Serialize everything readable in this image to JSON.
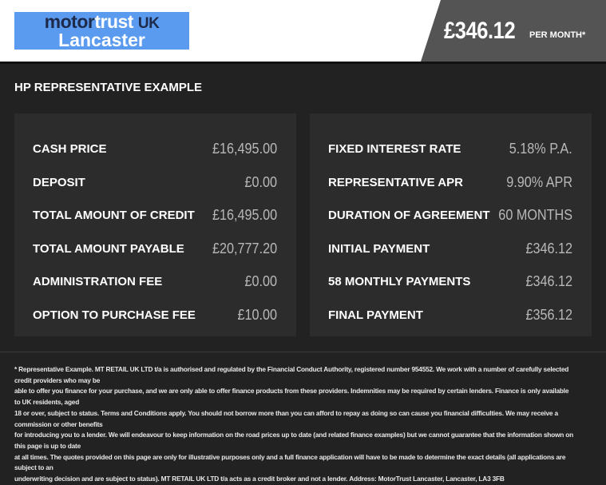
{
  "logo": {
    "motor": "motor",
    "trust": "trust",
    "uk": "UK",
    "location": "Lancaster"
  },
  "header": {
    "price": "£346.12",
    "per_month": "PER MONTH*"
  },
  "title": "HP REPRESENTATIVE EXAMPLE",
  "left": [
    {
      "label": "CASH PRICE",
      "value": "£16,495.00"
    },
    {
      "label": "DEPOSIT",
      "value": "£0.00"
    },
    {
      "label": "TOTAL AMOUNT OF CREDIT",
      "value": "£16,495.00"
    },
    {
      "label": "TOTAL AMOUNT PAYABLE",
      "value": "£20,777.20"
    },
    {
      "label": "ADMINISTRATION FEE",
      "value": "£0.00"
    },
    {
      "label": "OPTION TO PURCHASE FEE",
      "value": "£10.00"
    }
  ],
  "right": [
    {
      "label": "FIXED INTEREST RATE",
      "value": "5.18% P.A."
    },
    {
      "label": "REPRESENTATIVE APR",
      "value": "9.90% APR"
    },
    {
      "label": "DURATION OF AGREEMENT",
      "value": "60 MONTHS"
    },
    {
      "label": "INITIAL PAYMENT",
      "value": "£346.12"
    },
    {
      "label": "58 MONTHLY PAYMENTS",
      "value": "£346.12"
    },
    {
      "label": "FINAL PAYMENT",
      "value": "£356.12"
    }
  ],
  "footnote": "* Representative Example. MT RETAIL UK LTD t/a is authorised and regulated by the Financial Conduct Authority, registered number 954552. We work with a number of carefully selected credit providers who may be\nable to offer you finance for your purchase, and we are only able to offer finance products from these providers. Indemnities may be required by certain lenders. Finance is only available to UK residents, aged\n18 or over, subject to status. Terms and Conditions apply. You should not borrow more than you can afford to repay as doing so can cause you financial difficulties. We may receive a commission or other benefits\nfor introducing you to a lender. We will endeavour to keep information on the road prices up to date (and related finance examples) but we cannot guarantee that the information shown on this page is up to date\nat all times. The quotes provided on this page are only for illustrative purposes only and a full finance application will have to be made to determine the exact details (all applications are subject to an\nunderwriting decision and are subject to status). MT RETAIL UK LTD t/a acts as a credit broker and not a lender. Address: MotorTrust Lancaster, Lancaster, LA3 3FB"
}
